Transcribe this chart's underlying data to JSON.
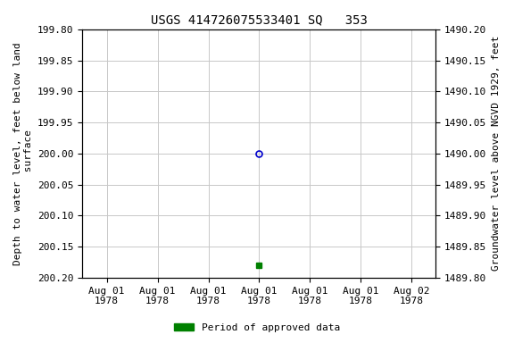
{
  "title": "USGS 414726075533401 SQ   353",
  "ylabel_left": "Depth to water level, feet below land\n surface",
  "ylabel_right": "Groundwater level above NGVD 1929, feet",
  "ylim_left": [
    199.8,
    200.2
  ],
  "ylim_right": [
    1490.2,
    1489.8
  ],
  "yticks_left": [
    199.8,
    199.85,
    199.9,
    199.95,
    200.0,
    200.05,
    200.1,
    200.15,
    200.2
  ],
  "yticks_right": [
    1490.2,
    1490.15,
    1490.1,
    1490.05,
    1490.0,
    1489.95,
    1489.9,
    1489.85,
    1489.8
  ],
  "xlim_days": [
    -0.08,
    1.08
  ],
  "xtick_labels": [
    "Aug 01\n1978",
    "Aug 01\n1978",
    "Aug 01\n1978",
    "Aug 01\n1978",
    "Aug 01\n1978",
    "Aug 01\n1978",
    "Aug 02\n1978"
  ],
  "xtick_positions": [
    0.0,
    0.166667,
    0.333333,
    0.5,
    0.666667,
    0.833333,
    1.0
  ],
  "data_blue_x": [
    0.5
  ],
  "data_blue_y": [
    200.0
  ],
  "data_green_x": [
    0.5
  ],
  "data_green_y": [
    200.18
  ],
  "blue_color": "#0000cc",
  "green_color": "#008000",
  "legend_label": "Period of approved data",
  "bg_color": "#ffffff",
  "grid_color": "#c8c8c8",
  "title_fontsize": 10,
  "label_fontsize": 8,
  "tick_fontsize": 8
}
